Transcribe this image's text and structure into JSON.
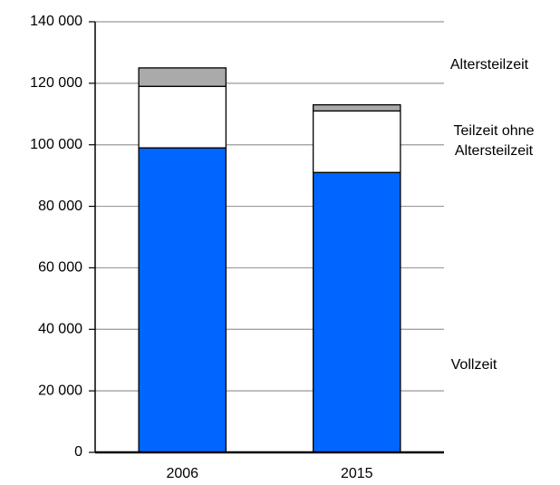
{
  "chart_data": {
    "type": "stacked_bar",
    "categories": [
      "2006",
      "2015"
    ],
    "series": [
      {
        "name": "Vollzeit",
        "color": "#0066ff",
        "values": [
          99000,
          91000
        ]
      },
      {
        "name": "Teilzeit ohne Altersteilzeit",
        "color": "#ffffff",
        "values": [
          20000,
          20000
        ]
      },
      {
        "name": "Altersteilzeit",
        "color": "#aaaaaa",
        "values": [
          6000,
          2000
        ]
      }
    ],
    "ylim": [
      0,
      140000
    ],
    "yticks": [
      0,
      {
        "value": 20000,
        "label": "20 000"
      },
      {
        "value": 40000,
        "label": "40 000"
      },
      {
        "value": 60000,
        "label": "60 000"
      },
      {
        "value": 80000,
        "label": "80 000"
      },
      {
        "value": 100000,
        "label": "100 000"
      },
      {
        "value": 120000,
        "label": "120 000"
      },
      {
        "value": 140000,
        "label": "140 000"
      }
    ],
    "grid": true
  }
}
